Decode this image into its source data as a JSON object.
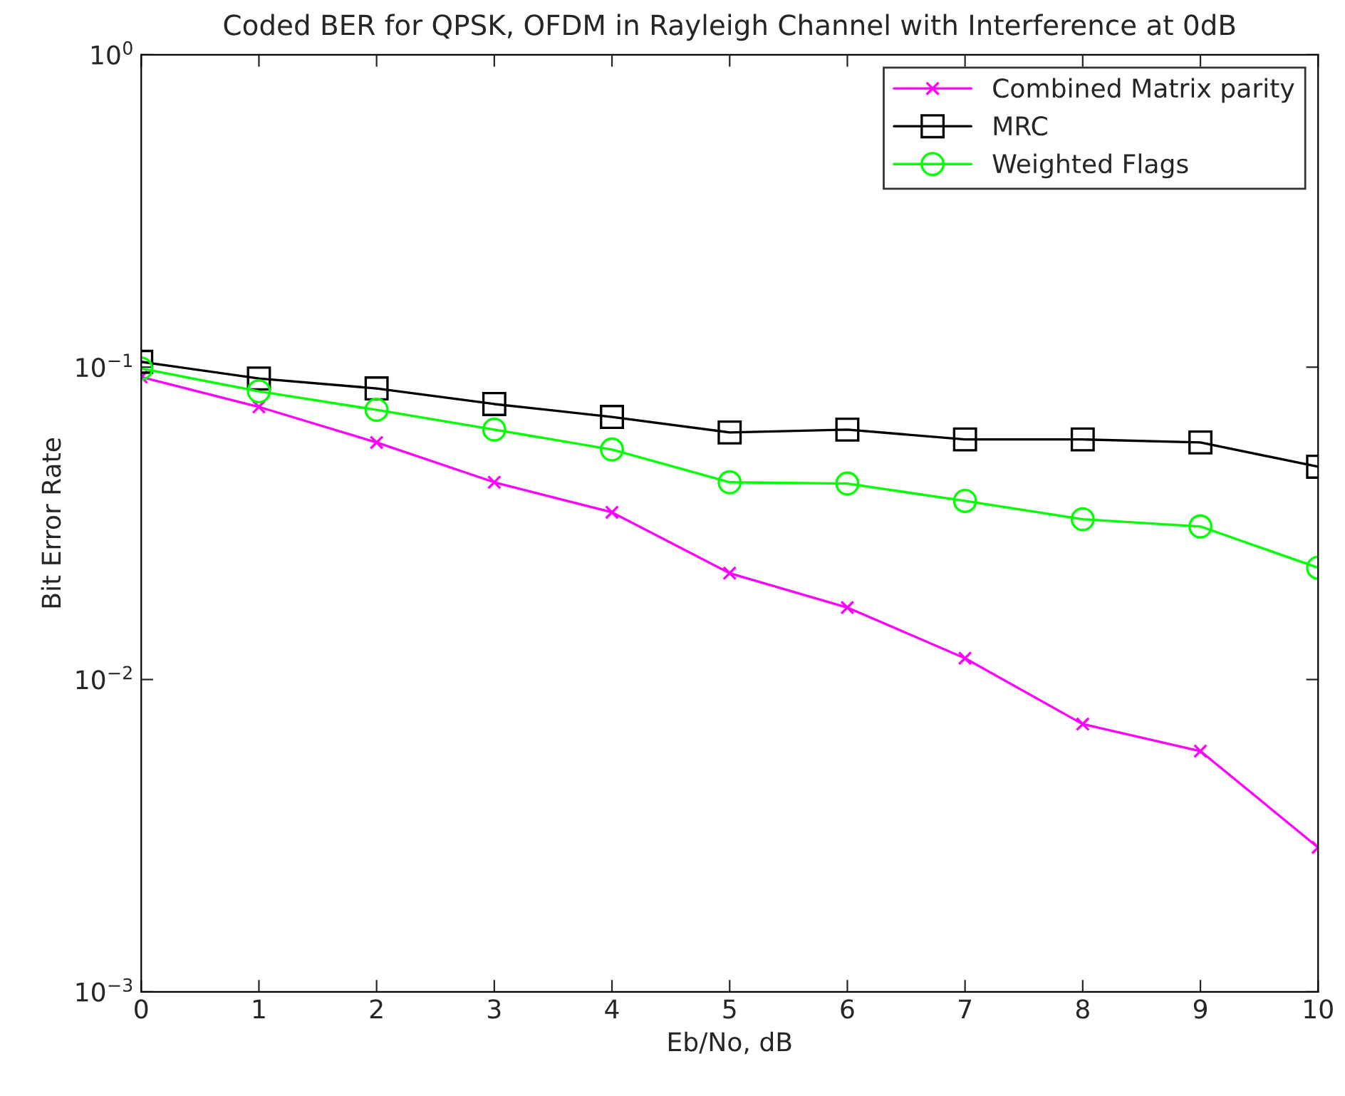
{
  "chart_data": {
    "type": "line",
    "title": "Coded BER for QPSK, OFDM in Rayleigh Channel with Interference at 0dB",
    "xlabel": "Eb/No, dB",
    "ylabel": "Bit Error Rate",
    "x": [
      0,
      1,
      2,
      3,
      4,
      5,
      6,
      7,
      8,
      9,
      10
    ],
    "series": [
      {
        "name": "Combined Matrix parity",
        "color": "#ff00ff",
        "marker": "cross",
        "values": [
          0.093,
          0.0746,
          0.0574,
          0.0428,
          0.0343,
          0.0219,
          0.017,
          0.0117,
          0.0072,
          0.0059,
          0.0029
        ]
      },
      {
        "name": "MRC",
        "color": "#000000",
        "marker": "square",
        "values": [
          0.104,
          0.092,
          0.0855,
          0.0762,
          0.0693,
          0.0618,
          0.0631,
          0.0587,
          0.0587,
          0.0574,
          0.048
        ]
      },
      {
        "name": "Weighted Flags",
        "color": "#00ff00",
        "marker": "circle",
        "values": [
          0.099,
          0.0837,
          0.073,
          0.0631,
          0.0545,
          0.0428,
          0.0424,
          0.0373,
          0.0326,
          0.0309,
          0.0228
        ]
      }
    ],
    "log": "y",
    "xlim": [
      0,
      10
    ],
    "xticks": [
      0,
      1,
      2,
      3,
      4,
      5,
      6,
      7,
      8,
      9,
      10
    ],
    "ylim": [
      0.001,
      1
    ],
    "yticks": [
      {
        "value": 0.001,
        "label": "10$^{−3}$"
      },
      {
        "value": 0.01,
        "label": "10$^{−2}$"
      },
      {
        "value": 0.1,
        "label": "10$^{−1}$"
      },
      {
        "value": 1,
        "label": "10$^{0}$"
      }
    ],
    "grid": false,
    "legend": "top right",
    "line_style": "solid"
  }
}
